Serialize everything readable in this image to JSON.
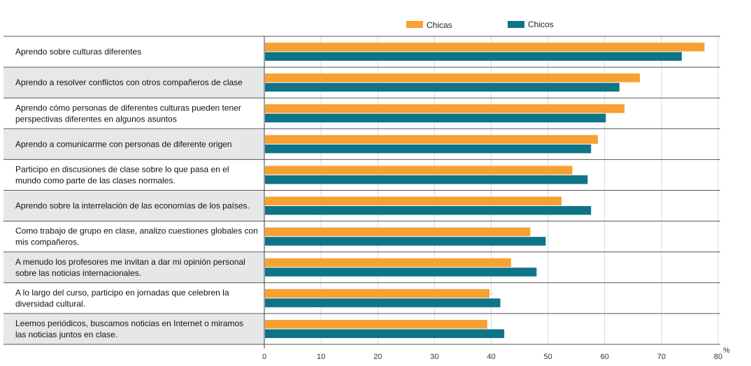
{
  "chart_data": {
    "type": "bar",
    "orientation": "horizontal",
    "unit": "%",
    "xlim": [
      0,
      80
    ],
    "x_ticks": [
      0,
      10,
      20,
      30,
      40,
      50,
      60,
      70,
      80
    ],
    "grid": true,
    "legend_position": "top",
    "categories": [
      [
        "Aprendo sobre culturas diferentes"
      ],
      [
        "Aprendo a resolver conflictos con otros compañeros de clase"
      ],
      [
        "Aprendo cómo personas de diferentes culturas pueden tener",
        "perspectivas diferentes en algunos asuntos"
      ],
      [
        "Aprendo a comunicarme con personas de diferente origen"
      ],
      [
        "Participo en discusiones de clase sobre lo que pasa en el",
        "mundo como parte de las clases normales."
      ],
      [
        "Aprendo sobre la interrelación de las economías de los países."
      ],
      [
        "Como trabajo de grupo en clase, analizo cuestiones globales con",
        "mis compañeros."
      ],
      [
        "A menudo los profesores me invitan a dar mi opinión personal",
        "sobre las noticias internacionales."
      ],
      [
        "A lo largo del curso, participo en jornadas que celebren la",
        "diversidad cultural."
      ],
      [
        "Leemos periódicos, buscamos noticias en Internet o miramos",
        "las noticias juntos en clase."
      ]
    ],
    "series": [
      {
        "name": "Chicas",
        "color": "#F7A033",
        "values": [
          77.6,
          66.2,
          63.5,
          58.8,
          54.3,
          52.4,
          46.9,
          43.5,
          39.7,
          39.3
        ]
      },
      {
        "name": "Chicos",
        "color": "#0E7487",
        "values": [
          73.6,
          62.6,
          60.2,
          57.6,
          57.0,
          57.6,
          49.6,
          48.0,
          41.6,
          42.3
        ]
      }
    ],
    "colors": {
      "band_shaded": "#E6E7E8",
      "divider": "#555555",
      "grid": "#D9D9D9",
      "axis": "#444444"
    }
  }
}
